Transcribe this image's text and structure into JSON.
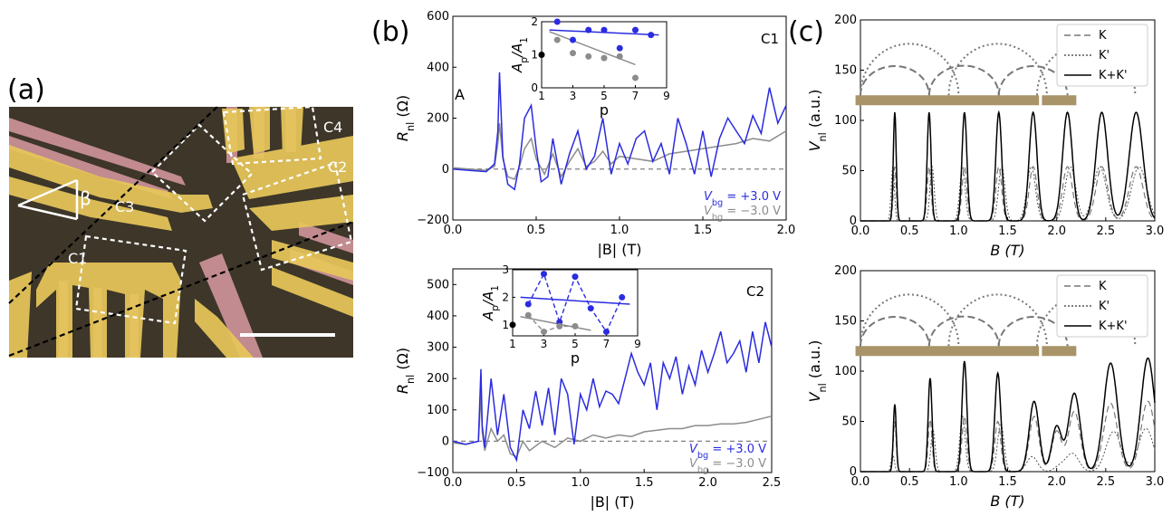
{
  "panel_labels": {
    "a": "(a)",
    "b": "(b)",
    "c": "(c)"
  },
  "micrograph": {
    "contact_labels": [
      "C1",
      "C2",
      "C3",
      "C4"
    ],
    "angle_label": "β",
    "colors": {
      "contact": "#e8c75a",
      "lead": "#d99aa2",
      "substrate": "#3d3629"
    }
  },
  "chart_data": [
    {
      "id": "b_top",
      "type": "line",
      "title": "C1",
      "xlabel": "|B| (T)",
      "ylabel": "R_nl (Ω)",
      "xlim": [
        0,
        2.0
      ],
      "ylim": [
        -200,
        600
      ],
      "xticks": [
        "0.0",
        "0.5",
        "1.0",
        "1.5",
        "2.0"
      ],
      "yticks": [
        "−200",
        "0",
        "200",
        "400",
        "600"
      ],
      "extra_text": "A",
      "legend": [
        "V_bg = +3.0 V",
        "V_bg = −3.0 V"
      ],
      "series": [
        {
          "name": "V_bg = +3.0 V",
          "color": "#2b2be0",
          "x": [
            0,
            0.1,
            0.2,
            0.25,
            0.27,
            0.28,
            0.3,
            0.33,
            0.37,
            0.4,
            0.43,
            0.47,
            0.5,
            0.53,
            0.57,
            0.6,
            0.65,
            0.7,
            0.75,
            0.8,
            0.85,
            0.9,
            0.95,
            1.0,
            1.05,
            1.1,
            1.15,
            1.2,
            1.25,
            1.3,
            1.35,
            1.4,
            1.45,
            1.5,
            1.55,
            1.6,
            1.65,
            1.7,
            1.75,
            1.8,
            1.85,
            1.9,
            1.95,
            2.0
          ],
          "y": [
            0,
            -5,
            -10,
            20,
            150,
            380,
            50,
            -60,
            -80,
            20,
            200,
            250,
            80,
            -50,
            -30,
            120,
            -60,
            60,
            150,
            0,
            50,
            200,
            -20,
            100,
            20,
            120,
            150,
            30,
            100,
            -20,
            200,
            100,
            -20,
            150,
            -30,
            120,
            200,
            150,
            100,
            210,
            140,
            320,
            180,
            250
          ]
        },
        {
          "name": "V_bg = −3.0 V",
          "color": "#8c8c8c",
          "x": [
            0,
            0.1,
            0.2,
            0.25,
            0.27,
            0.28,
            0.3,
            0.33,
            0.37,
            0.4,
            0.43,
            0.47,
            0.5,
            0.55,
            0.6,
            0.65,
            0.7,
            0.75,
            0.8,
            0.85,
            0.9,
            0.95,
            1.0,
            1.1,
            1.2,
            1.3,
            1.4,
            1.5,
            1.6,
            1.7,
            1.8,
            1.9,
            2.0
          ],
          "y": [
            5,
            0,
            -5,
            10,
            100,
            180,
            40,
            -30,
            -40,
            10,
            80,
            120,
            40,
            -20,
            60,
            -30,
            30,
            80,
            10,
            30,
            70,
            20,
            50,
            40,
            30,
            60,
            70,
            80,
            90,
            100,
            120,
            110,
            150
          ]
        }
      ],
      "inset": {
        "xlabel": "p",
        "ylabel": "A_p/A_1",
        "xlim": [
          1,
          9
        ],
        "ylim": [
          0,
          2
        ],
        "xticks": [
          "1",
          "3",
          "5",
          "7",
          "9"
        ],
        "yticks": [
          "0",
          "1",
          "2"
        ],
        "points_blue": {
          "x": [
            2,
            3,
            4,
            5,
            6,
            7,
            8
          ],
          "y": [
            2.0,
            1.45,
            1.75,
            1.75,
            1.2,
            1.75,
            1.6
          ]
        },
        "points_gray": {
          "x": [
            2,
            3,
            4,
            5,
            6,
            7
          ],
          "y": [
            1.45,
            1.05,
            0.95,
            0.9,
            0.95,
            0.3
          ]
        },
        "point_black": {
          "x": 1,
          "y": 1.0
        },
        "fit_blue": [
          [
            1.5,
            1.75
          ],
          [
            8.5,
            1.6
          ]
        ],
        "fit_gray": [
          [
            1.5,
            1.7
          ],
          [
            7,
            0.7
          ]
        ]
      }
    },
    {
      "id": "b_bottom",
      "type": "line",
      "title": "C2",
      "xlabel": "|B| (T)",
      "ylabel": "R_nl (Ω)",
      "xlim": [
        0,
        2.5
      ],
      "ylim": [
        -100,
        550
      ],
      "xticks": [
        "0.0",
        "0.5",
        "1.0",
        "1.5",
        "2.0",
        "2.5"
      ],
      "yticks": [
        "−100",
        "0",
        "100",
        "200",
        "300",
        "400",
        "500"
      ],
      "legend": [
        "V_bg = +3.0 V",
        "V_bg = −3.0 V"
      ],
      "series": [
        {
          "name": "V_bg = +3.0 V",
          "color": "#2b2be0",
          "x": [
            0,
            0.1,
            0.2,
            0.22,
            0.23,
            0.25,
            0.3,
            0.35,
            0.4,
            0.45,
            0.5,
            0.55,
            0.6,
            0.65,
            0.7,
            0.75,
            0.8,
            0.85,
            0.9,
            0.95,
            1.0,
            1.05,
            1.1,
            1.15,
            1.2,
            1.25,
            1.3,
            1.35,
            1.4,
            1.45,
            1.5,
            1.55,
            1.6,
            1.65,
            1.7,
            1.75,
            1.8,
            1.85,
            1.9,
            1.95,
            2.0,
            2.05,
            2.1,
            2.15,
            2.2,
            2.25,
            2.3,
            2.35,
            2.4,
            2.45,
            2.5
          ],
          "y": [
            0,
            -10,
            0,
            230,
            50,
            -20,
            200,
            20,
            150,
            -20,
            -60,
            100,
            40,
            160,
            50,
            170,
            20,
            200,
            150,
            -10,
            150,
            100,
            200,
            110,
            160,
            150,
            120,
            200,
            280,
            220,
            180,
            250,
            100,
            250,
            200,
            270,
            150,
            240,
            180,
            290,
            220,
            280,
            350,
            250,
            280,
            320,
            220,
            350,
            250,
            380,
            300
          ]
        },
        {
          "name": "V_bg = −3.0 V",
          "color": "#8c8c8c",
          "x": [
            0,
            0.1,
            0.2,
            0.22,
            0.23,
            0.25,
            0.3,
            0.35,
            0.4,
            0.45,
            0.5,
            0.55,
            0.6,
            0.7,
            0.8,
            0.9,
            1.0,
            1.1,
            1.2,
            1.3,
            1.4,
            1.5,
            1.6,
            1.7,
            1.8,
            1.9,
            2.0,
            2.1,
            2.2,
            2.3,
            2.4,
            2.5
          ],
          "y": [
            -5,
            -10,
            0,
            150,
            30,
            -30,
            40,
            0,
            20,
            -40,
            -50,
            0,
            -30,
            0,
            -20,
            10,
            0,
            20,
            10,
            20,
            15,
            30,
            35,
            40,
            40,
            50,
            50,
            55,
            55,
            60,
            70,
            80
          ]
        }
      ],
      "inset": {
        "xlabel": "p",
        "ylabel": "A_p/A_1",
        "xlim": [
          1,
          9
        ],
        "ylim": [
          0.6,
          3
        ],
        "xticks": [
          "1",
          "3",
          "5",
          "7",
          "9"
        ],
        "yticks": [
          "1",
          "2",
          "3"
        ],
        "points_blue": {
          "x": [
            2,
            3,
            4,
            5,
            6,
            7,
            8
          ],
          "y": [
            1.75,
            2.85,
            1.1,
            2.75,
            1.6,
            0.75,
            2.0
          ]
        },
        "points_gray": {
          "x": [
            2,
            3,
            4,
            5
          ],
          "y": [
            1.35,
            0.75,
            0.95,
            0.95
          ]
        },
        "point_black": {
          "x": 1,
          "y": 1.0
        },
        "fit_blue": [
          [
            1.5,
            2.0
          ],
          [
            8.5,
            1.75
          ]
        ],
        "fit_gray": [
          [
            1.5,
            1.3
          ],
          [
            6,
            0.8
          ]
        ]
      }
    },
    {
      "id": "c_top",
      "type": "line",
      "xlabel": "B (T)",
      "ylabel": "V_nl (a.u.)",
      "xlim": [
        0,
        3.0
      ],
      "ylim": [
        0,
        200
      ],
      "xticks": [
        "0.0",
        "0.5",
        "1.0",
        "1.5",
        "2.0",
        "2.5",
        "3.0"
      ],
      "yticks": [
        "0",
        "50",
        "100",
        "150",
        "200"
      ],
      "legend": [
        "K",
        "K'",
        "K+K'"
      ],
      "peaks_x": [
        0.35,
        0.7,
        1.06,
        1.41,
        1.76,
        2.11,
        2.46,
        2.81
      ],
      "peaks_total": [
        108,
        108,
        108,
        108,
        108,
        108,
        108,
        108
      ],
      "peaks_K": [
        54,
        54,
        54,
        54,
        54,
        54,
        54,
        54
      ],
      "peak_width_sigma": [
        0.015,
        0.02,
        0.025,
        0.03,
        0.04,
        0.05,
        0.06,
        0.07
      ]
    },
    {
      "id": "c_bottom",
      "type": "line",
      "xlabel": "B (T)",
      "ylabel": "V_nl (a.u.)",
      "xlim": [
        0,
        3.0
      ],
      "ylim": [
        0,
        200
      ],
      "xticks": [
        "0.0",
        "0.5",
        "1.0",
        "1.5",
        "2.0",
        "2.5",
        "3.0"
      ],
      "yticks": [
        "0",
        "50",
        "100",
        "150",
        "200"
      ],
      "legend": [
        "K",
        "K'",
        "K+K'"
      ],
      "peaks_x": [
        0.35,
        0.71,
        1.06,
        1.4,
        1.77,
        2.0,
        2.18,
        2.55,
        2.93
      ],
      "peaks_total": [
        67,
        93,
        110,
        98,
        70,
        45,
        78,
        108,
        113
      ],
      "peaks_K": [
        50,
        52,
        55,
        50,
        55,
        40,
        60,
        68,
        70
      ],
      "peak_width_sigma": [
        0.015,
        0.02,
        0.025,
        0.03,
        0.05,
        0.05,
        0.06,
        0.07,
        0.07
      ]
    }
  ]
}
